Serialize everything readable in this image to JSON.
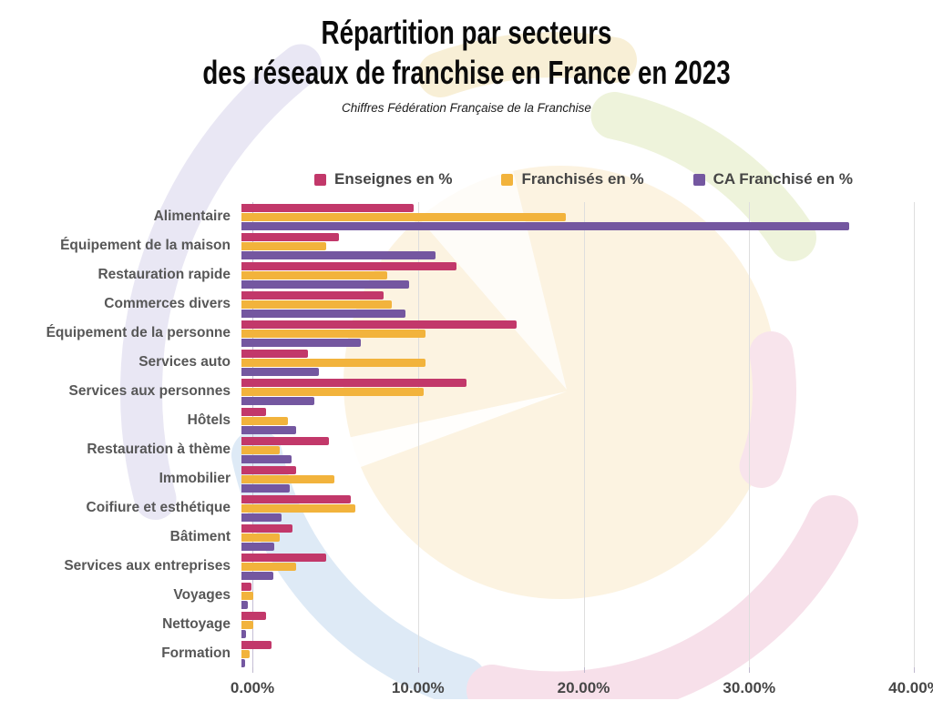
{
  "title": {
    "line1": "Répartition par secteurs",
    "line2": "des réseaux de franchise en France en 2023"
  },
  "subtitle": "Chiffres Fédération Française de la Franchise",
  "legend": [
    {
      "label": "Enseignes en %",
      "color": "#C2386A"
    },
    {
      "label": "Franchisés en %",
      "color": "#F2B33C"
    },
    {
      "label": "CA Franchisé en %",
      "color": "#7457A0"
    }
  ],
  "chart_data": {
    "type": "bar",
    "orientation": "horizontal",
    "title": "Répartition par secteurs des réseaux de franchise en France en 2023",
    "source": "Chiffres Fédération Française de la Franchise",
    "categories": [
      "Alimentaire",
      "Équipement de la maison",
      "Restauration rapide",
      "Commerces divers",
      "Équipement de la personne",
      "Services auto",
      "Services aux personnes",
      "Hôtels",
      "Restauration à thème",
      "Immobilier",
      "Coifiure et esthétique",
      "Bâtiment",
      "Services aux entreprises",
      "Voyages",
      "Nettoyage",
      "Formation"
    ],
    "series": [
      {
        "name": "Enseignes en %",
        "color": "#C2386A",
        "values": [
          10.4,
          5.9,
          13.0,
          8.6,
          16.6,
          4.0,
          13.6,
          1.5,
          5.3,
          3.3,
          6.6,
          3.1,
          5.1,
          0.6,
          1.5,
          1.8
        ]
      },
      {
        "name": "Franchisés en %",
        "color": "#F2B33C",
        "values": [
          19.6,
          5.1,
          8.8,
          9.1,
          11.1,
          11.1,
          11.0,
          2.8,
          2.3,
          5.6,
          6.9,
          2.3,
          3.3,
          0.7,
          0.7,
          0.5
        ]
      },
      {
        "name": "CA Franchisé en %",
        "color": "#7457A0",
        "values": [
          36.7,
          11.7,
          10.1,
          9.9,
          7.2,
          4.7,
          4.4,
          3.3,
          3.0,
          2.9,
          2.4,
          2.0,
          1.9,
          0.4,
          0.3,
          0.2
        ]
      }
    ],
    "xticks": [
      "0.00%",
      "10.00%",
      "20.00%",
      "30.00%",
      "40.00%"
    ],
    "xlim": [
      0,
      40
    ],
    "grid": "vertical",
    "legend_position": "top",
    "watermark_colors": {
      "lavender": "#E9E7F4",
      "light_blue": "#DEEAF6",
      "pink": "#F7E0EA",
      "green": "#EEF3DB",
      "cream": "#FBF1DC"
    }
  }
}
